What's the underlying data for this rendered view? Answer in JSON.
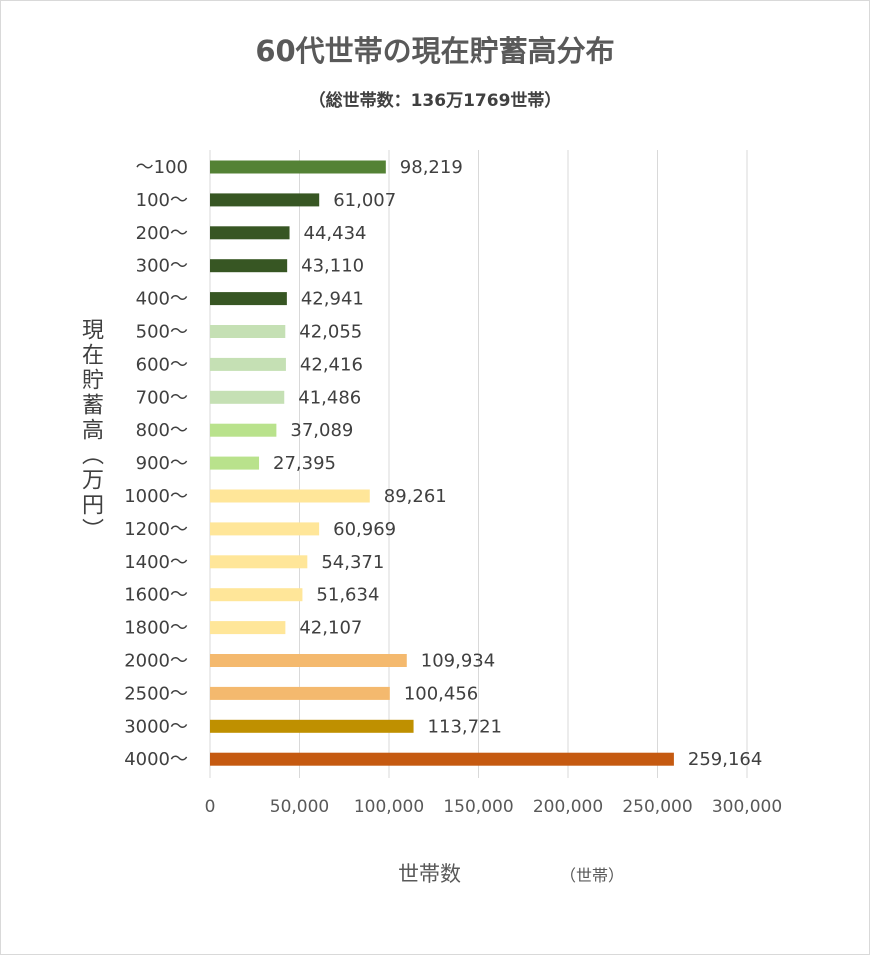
{
  "chart_data": {
    "type": "bar",
    "orientation": "horizontal",
    "title": "60代世帯の現在貯蓄高分布",
    "subtitle": "（総世帯数：136万1769世帯）",
    "xlabel": "世帯数",
    "xunit": "（世帯）",
    "ylabel": "現在貯蓄高（万円）",
    "categories": [
      "～100",
      "100～",
      "200～",
      "300～",
      "400～",
      "500～",
      "600～",
      "700～",
      "800～",
      "900～",
      "1000～",
      "1200～",
      "1400～",
      "1600～",
      "1800～",
      "2000～",
      "2500～",
      "3000～",
      "4000～"
    ],
    "values": [
      98219,
      61007,
      44434,
      43110,
      42941,
      42055,
      42416,
      41486,
      37089,
      27395,
      89261,
      60969,
      54371,
      51634,
      42107,
      109934,
      100456,
      113721,
      259164
    ],
    "value_labels": [
      "98,219",
      "61,007",
      "44,434",
      "43,110",
      "42,941",
      "42,055",
      "42,416",
      "41,486",
      "37,089",
      "27,395",
      "89,261",
      "60,969",
      "54,371",
      "51,634",
      "42,107",
      "109,934",
      "100,456",
      "113,721",
      "259,164"
    ],
    "bar_colors": [
      "#548235",
      "#375623",
      "#375623",
      "#375623",
      "#375623",
      "#c5e0b4",
      "#c5e0b4",
      "#c5e0b4",
      "#b9e28c",
      "#b9e28c",
      "#ffe699",
      "#ffe699",
      "#ffe699",
      "#ffe699",
      "#ffe699",
      "#f4b96e",
      "#f4b96e",
      "#bf9000",
      "#c55a11"
    ],
    "xlim": [
      0,
      300000
    ],
    "xticks": [
      0,
      50000,
      100000,
      150000,
      200000,
      250000,
      300000
    ],
    "xtick_labels": [
      "0",
      "50,000",
      "100,000",
      "150,000",
      "200,000",
      "250,000",
      "300,000"
    ],
    "grid": true,
    "gridline_color": "#d9d9d9"
  }
}
